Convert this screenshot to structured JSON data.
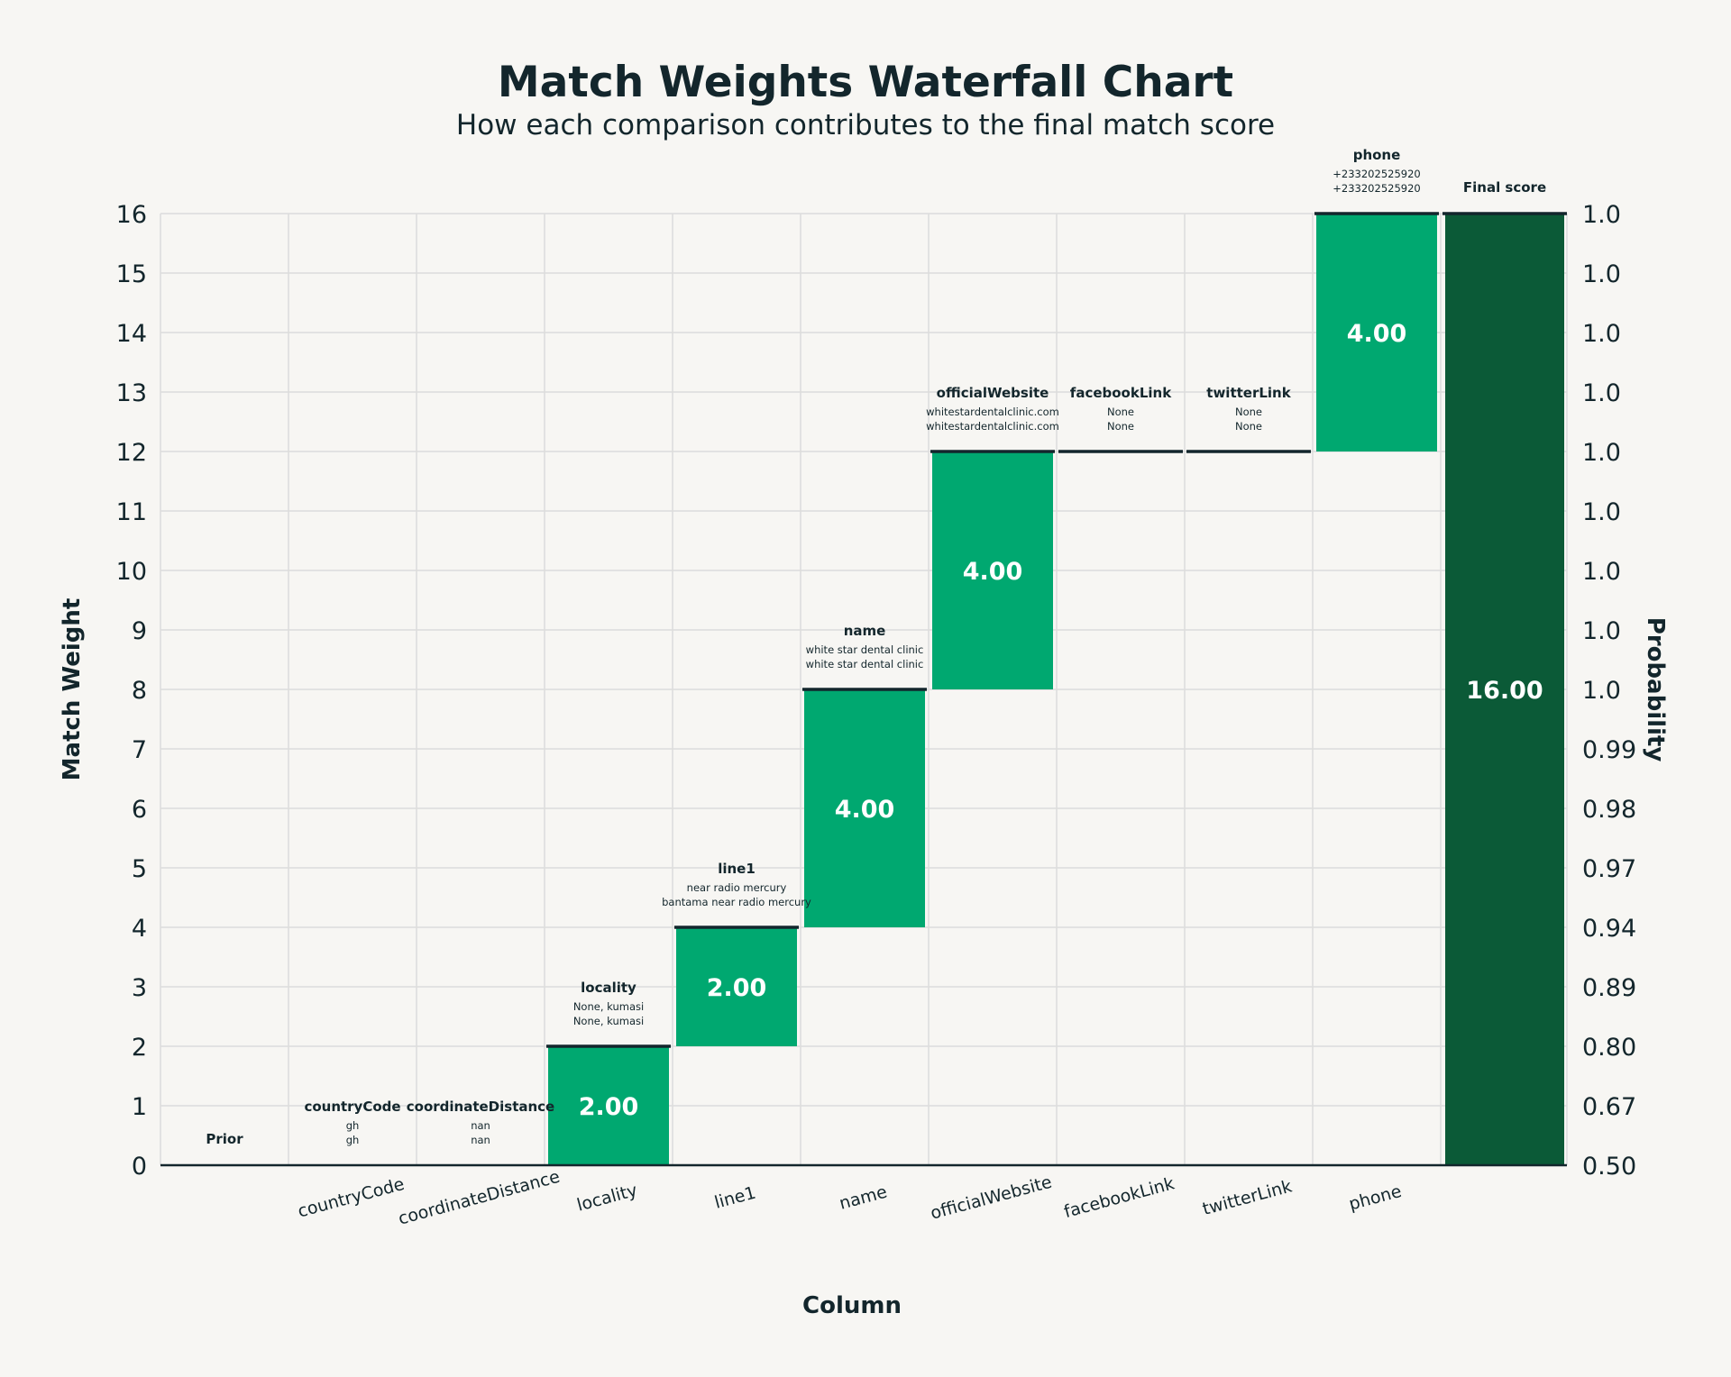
{
  "chart_data": {
    "type": "bar",
    "subtype": "waterfall",
    "title": "Match Weights Waterfall Chart",
    "subtitle": "How each comparison contributes to the final match score",
    "xlabel": "Column",
    "ylabel": "Match Weight",
    "y2label": "Probability",
    "ylim": [
      0,
      16
    ],
    "yticks": [
      0,
      1,
      2,
      3,
      4,
      5,
      6,
      7,
      8,
      9,
      10,
      11,
      12,
      13,
      14,
      15,
      16
    ],
    "y2ticks": [
      "0.50",
      "0.67",
      "0.80",
      "0.89",
      "0.94",
      "0.97",
      "0.98",
      "0.99",
      "1.0",
      "1.0",
      "1.0",
      "1.0",
      "1.0",
      "1.0",
      "1.0",
      "1.0",
      "1.0"
    ],
    "grid": true,
    "colors": {
      "step_bar": "#00a870",
      "final_bar": "#0b5a37",
      "line": "#13262c",
      "grid": "#dcdcdc",
      "text": "#13262c",
      "background": "#f7f6f3"
    },
    "categories": [
      {
        "name": "Prior",
        "tick": "",
        "value": 0,
        "value_label": "",
        "annotation": {
          "title": "Prior",
          "left": "",
          "right": ""
        }
      },
      {
        "name": "countryCode",
        "tick": "countryCode",
        "value": 0,
        "value_label": "",
        "annotation": {
          "title": "countryCode",
          "left": "gh",
          "right": "gh"
        }
      },
      {
        "name": "coordinateDistance",
        "tick": "coordinateDistance",
        "value": 0,
        "value_label": "",
        "annotation": {
          "title": "coordinateDistance",
          "left": "nan",
          "right": "nan"
        }
      },
      {
        "name": "locality",
        "tick": "locality",
        "value": 2,
        "value_label": "2.00",
        "annotation": {
          "title": "locality",
          "left": "None, kumasi",
          "right": "None, kumasi"
        }
      },
      {
        "name": "line1",
        "tick": "line1",
        "value": 2,
        "value_label": "2.00",
        "annotation": {
          "title": "line1",
          "left": "near radio mercury",
          "right": "bantama near radio mercury"
        }
      },
      {
        "name": "name",
        "tick": "name",
        "value": 4,
        "value_label": "4.00",
        "annotation": {
          "title": "name",
          "left": "white star dental clinic",
          "right": "white star dental clinic"
        }
      },
      {
        "name": "officialWebsite",
        "tick": "officialWebsite",
        "value": 4,
        "value_label": "4.00",
        "annotation": {
          "title": "officialWebsite",
          "left": "whitestardentalclinic.com",
          "right": "whitestardentalclinic.com"
        }
      },
      {
        "name": "facebookLink",
        "tick": "facebookLink",
        "value": 0,
        "value_label": "",
        "annotation": {
          "title": "facebookLink",
          "left": "None",
          "right": "None"
        }
      },
      {
        "name": "twitterLink",
        "tick": "twitterLink",
        "value": 0,
        "value_label": "",
        "annotation": {
          "title": "twitterLink",
          "left": "None",
          "right": "None"
        }
      },
      {
        "name": "phone",
        "tick": "phone",
        "value": 4,
        "value_label": "4.00",
        "annotation": {
          "title": "phone",
          "left": "+233202525920",
          "right": "+233202525920"
        }
      }
    ],
    "final": {
      "name": "Final score",
      "tick": "",
      "value": 16,
      "value_label": "16.00",
      "annotation": {
        "title": "Final score",
        "left": "",
        "right": ""
      }
    }
  }
}
